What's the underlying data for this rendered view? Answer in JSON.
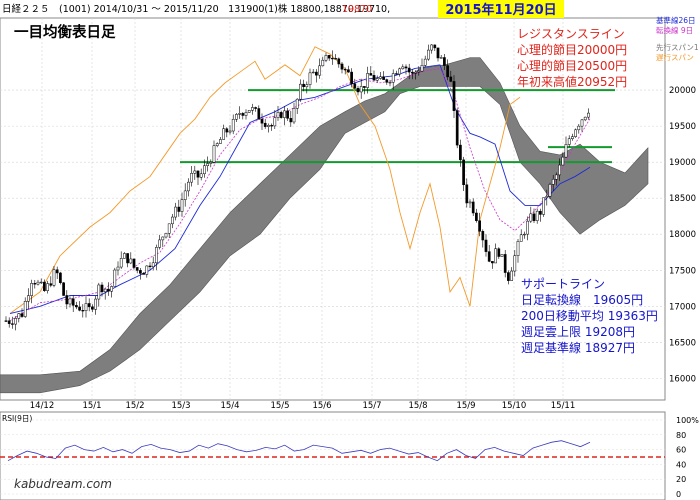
{
  "header": {
    "info": "日経２２５　(1001) 2014/10/31 ～ 2015/11/20　131900(1)株 18800,18870,19710,",
    "last": "19870",
    "date_badge": "2015年11月20日",
    "title": "一目均衡表日足",
    "legend": [
      "基準線26日",
      "転換線 9日",
      "先行スパン1",
      "遅行スパン"
    ]
  },
  "resistance": {
    "title": "レジスタンスライン",
    "lines": [
      "心理的節目20000円",
      "心理的節目20500円",
      "年初来高値20952円"
    ]
  },
  "support": {
    "title": "サポートライン",
    "lines": [
      "日足転換線　19605円",
      "200日移動平均 19363円",
      "週足雲上限 19208円",
      "週足基準線 18927円"
    ]
  },
  "watermark": "kabudream.com",
  "rsi_label": "RSI(9日)",
  "colors": {
    "bull": "#ffffff",
    "bear": "#000000",
    "cloud": "#777777",
    "kijun": "#1f2bd6",
    "tenkan": "#cc33cc",
    "chikou": "#f39a2b",
    "hline": "#139a2f",
    "rsi": "#3a3ac0",
    "rsi_ref": "#e0241b",
    "red_text": "#e0241b",
    "blue_text": "#1414cc",
    "badge_bg": "#ffff00"
  },
  "chart_data": [
    {
      "type": "candlestick",
      "x_tick_labels": [
        "14/12",
        "15/1",
        "15/2",
        "15/3",
        "15/4",
        "15/5",
        "15/6",
        "15/7",
        "15/8",
        "15/9",
        "15/10",
        "15/11"
      ],
      "y_tick_labels": [
        "16000",
        "16500",
        "17000",
        "17500",
        "18000",
        "18500",
        "19000",
        "19500",
        "20000"
      ],
      "ylim": [
        15700,
        21000
      ],
      "grid": true,
      "price_path": [
        [
          10,
          16800
        ],
        [
          22,
          16900
        ],
        [
          32,
          17400
        ],
        [
          45,
          17200
        ],
        [
          56,
          17500
        ],
        [
          66,
          17050
        ],
        [
          76,
          17000
        ],
        [
          90,
          16950
        ],
        [
          100,
          17300
        ],
        [
          110,
          17200
        ],
        [
          118,
          17600
        ],
        [
          126,
          17700
        ],
        [
          136,
          17500
        ],
        [
          145,
          17500
        ],
        [
          154,
          17700
        ],
        [
          160,
          17900
        ],
        [
          170,
          18200
        ],
        [
          180,
          18400
        ],
        [
          190,
          18800
        ],
        [
          200,
          18800
        ],
        [
          208,
          19000
        ],
        [
          216,
          19200
        ],
        [
          224,
          19400
        ],
        [
          232,
          19500
        ],
        [
          240,
          19700
        ],
        [
          250,
          19750
        ],
        [
          262,
          19600
        ],
        [
          272,
          19500
        ],
        [
          282,
          19700
        ],
        [
          292,
          19600
        ],
        [
          300,
          20000
        ],
        [
          310,
          20200
        ],
        [
          320,
          20300
        ],
        [
          330,
          20500
        ],
        [
          340,
          20350
        ],
        [
          350,
          20200
        ],
        [
          360,
          20000
        ],
        [
          370,
          20200
        ],
        [
          382,
          20100
        ],
        [
          392,
          20200
        ],
        [
          402,
          20400
        ],
        [
          412,
          20200
        ],
        [
          422,
          20350
        ],
        [
          432,
          20600
        ],
        [
          442,
          20400
        ],
        [
          450,
          20200
        ],
        [
          455,
          19500
        ],
        [
          460,
          19000
        ],
        [
          466,
          18500
        ],
        [
          472,
          18400
        ],
        [
          478,
          18200
        ],
        [
          484,
          17900
        ],
        [
          490,
          17600
        ],
        [
          498,
          17800
        ],
        [
          508,
          17400
        ],
        [
          515,
          17700
        ],
        [
          522,
          18000
        ],
        [
          530,
          18200
        ],
        [
          540,
          18300
        ],
        [
          548,
          18600
        ],
        [
          556,
          18800
        ],
        [
          562,
          19000
        ],
        [
          568,
          19300
        ],
        [
          576,
          19500
        ],
        [
          584,
          19650
        ],
        [
          590,
          19780
        ]
      ],
      "kijun_26": [
        [
          10,
          16900
        ],
        [
          40,
          17000
        ],
        [
          70,
          17150
        ],
        [
          100,
          17150
        ],
        [
          120,
          17300
        ],
        [
          150,
          17500
        ],
        [
          175,
          17800
        ],
        [
          200,
          18400
        ],
        [
          220,
          18800
        ],
        [
          240,
          19300
        ],
        [
          250,
          19550
        ],
        [
          275,
          19700
        ],
        [
          295,
          19850
        ],
        [
          315,
          19900
        ],
        [
          345,
          20050
        ],
        [
          365,
          20150
        ],
        [
          395,
          20200
        ],
        [
          415,
          20300
        ],
        [
          440,
          20350
        ],
        [
          455,
          19750
        ],
        [
          470,
          19400
        ],
        [
          480,
          19350
        ],
        [
          495,
          19250
        ],
        [
          510,
          18600
        ],
        [
          525,
          18400
        ],
        [
          540,
          18400
        ],
        [
          560,
          18700
        ],
        [
          575,
          18800
        ],
        [
          590,
          18930
        ]
      ],
      "tenkan_9": [
        [
          10,
          16800
        ],
        [
          40,
          17050
        ],
        [
          70,
          17100
        ],
        [
          100,
          17200
        ],
        [
          120,
          17400
        ],
        [
          140,
          17600
        ],
        [
          160,
          17750
        ],
        [
          180,
          18150
        ],
        [
          200,
          18600
        ],
        [
          220,
          19100
        ],
        [
          240,
          19450
        ],
        [
          260,
          19600
        ],
        [
          280,
          19650
        ],
        [
          300,
          19800
        ],
        [
          320,
          19900
        ],
        [
          340,
          20050
        ],
        [
          360,
          20150
        ],
        [
          380,
          20100
        ],
        [
          400,
          20150
        ],
        [
          420,
          20250
        ],
        [
          440,
          20300
        ],
        [
          455,
          19900
        ],
        [
          470,
          19200
        ],
        [
          485,
          18600
        ],
        [
          500,
          18200
        ],
        [
          515,
          18050
        ],
        [
          530,
          18250
        ],
        [
          545,
          18500
        ],
        [
          560,
          18850
        ],
        [
          575,
          19250
        ],
        [
          590,
          19605
        ]
      ],
      "chikou": [
        [
          10,
          16900
        ],
        [
          40,
          17200
        ],
        [
          60,
          17700
        ],
        [
          90,
          18100
        ],
        [
          110,
          18300
        ],
        [
          130,
          18600
        ],
        [
          150,
          18800
        ],
        [
          165,
          19100
        ],
        [
          180,
          19400
        ],
        [
          195,
          19600
        ],
        [
          210,
          19900
        ],
        [
          225,
          20100
        ],
        [
          240,
          20250
        ],
        [
          255,
          20400
        ],
        [
          265,
          20150
        ],
        [
          285,
          20350
        ],
        [
          300,
          20200
        ],
        [
          315,
          20600
        ],
        [
          330,
          20500
        ],
        [
          345,
          20300
        ],
        [
          360,
          19800
        ],
        [
          375,
          19500
        ],
        [
          390,
          18900
        ],
        [
          400,
          18300
        ],
        [
          410,
          17800
        ],
        [
          420,
          18300
        ],
        [
          430,
          18700
        ],
        [
          440,
          18100
        ],
        [
          450,
          17200
        ],
        [
          460,
          17400
        ],
        [
          470,
          17000
        ],
        [
          480,
          18200
        ],
        [
          490,
          18700
        ],
        [
          500,
          19200
        ],
        [
          510,
          19800
        ],
        [
          520,
          19900
        ]
      ],
      "cloud_span1": [
        [
          0,
          16050
        ],
        [
          40,
          16050
        ],
        [
          80,
          16100
        ],
        [
          110,
          16400
        ],
        [
          140,
          16900
        ],
        [
          170,
          17300
        ],
        [
          200,
          17800
        ],
        [
          230,
          18300
        ],
        [
          260,
          18700
        ],
        [
          290,
          19100
        ],
        [
          320,
          19500
        ],
        [
          345,
          19700
        ],
        [
          365,
          19850
        ],
        [
          385,
          19950
        ],
        [
          400,
          20100
        ],
        [
          420,
          20300
        ],
        [
          445,
          20350
        ],
        [
          470,
          20450
        ],
        [
          480,
          20450
        ],
        [
          500,
          20100
        ],
        [
          520,
          19500
        ],
        [
          540,
          19150
        ],
        [
          560,
          19100
        ],
        [
          580,
          19250
        ],
        [
          600,
          19000
        ],
        [
          625,
          18850
        ],
        [
          648,
          19200
        ]
      ],
      "cloud_span2": [
        [
          0,
          15800
        ],
        [
          40,
          15800
        ],
        [
          80,
          15900
        ],
        [
          110,
          16100
        ],
        [
          140,
          16400
        ],
        [
          170,
          16800
        ],
        [
          200,
          17200
        ],
        [
          230,
          17700
        ],
        [
          260,
          18000
        ],
        [
          290,
          18500
        ],
        [
          320,
          18900
        ],
        [
          345,
          19400
        ],
        [
          365,
          19550
        ],
        [
          385,
          19700
        ],
        [
          400,
          19950
        ],
        [
          420,
          20050
        ],
        [
          445,
          20050
        ],
        [
          470,
          20050
        ],
        [
          480,
          20050
        ],
        [
          500,
          19800
        ],
        [
          520,
          19000
        ],
        [
          540,
          18700
        ],
        [
          560,
          18300
        ],
        [
          580,
          18000
        ],
        [
          600,
          18200
        ],
        [
          625,
          18400
        ],
        [
          648,
          18700
        ]
      ],
      "hlines": [
        {
          "y": 20000,
          "x1": 248,
          "x2": 615
        },
        {
          "y": 19000,
          "x1": 180,
          "x2": 612
        },
        {
          "y": 19208,
          "x1": 548,
          "x2": 612
        }
      ]
    },
    {
      "type": "line",
      "series": [
        {
          "name": "RSI(9日)",
          "values": [
            45,
            52,
            58,
            55,
            50,
            48,
            62,
            66,
            60,
            58,
            63,
            57,
            60,
            55,
            64,
            67,
            62,
            60,
            56,
            58,
            66,
            62,
            68,
            65,
            60,
            57,
            59,
            63,
            61,
            66,
            58,
            60,
            66,
            64,
            62,
            55,
            57,
            59,
            55,
            60,
            62,
            58,
            54,
            56,
            50,
            45,
            55,
            60,
            52,
            48,
            60,
            63,
            58,
            55,
            52,
            62,
            66,
            70,
            72,
            68,
            64,
            70
          ]
        }
      ],
      "reference": 50,
      "y_tick_labels": [
        "100%",
        "80",
        "60",
        "40",
        "20",
        "0"
      ],
      "ylim": [
        0,
        100
      ]
    }
  ]
}
